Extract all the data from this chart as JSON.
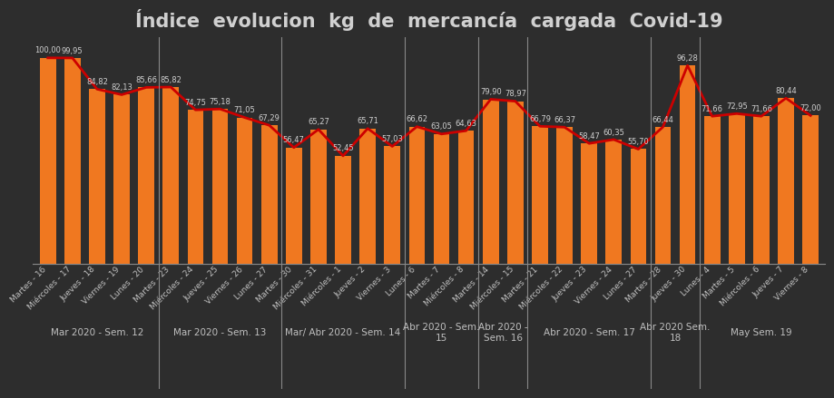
{
  "title": "Índice  evolucion  kg  de  mercancía  cargada  Covid-19",
  "background_color": "#2d2d2d",
  "bar_color": "#f07820",
  "line_color": "#cc0000",
  "grid_color": "#4a4a4a",
  "text_color": "#d0d0d0",
  "label_color": "#c0c0c0",
  "sep_color": "#888888",
  "categories": [
    "Martes - 16",
    "Miércoles - 17",
    "Jueves - 18",
    "Viernes - 19",
    "Lunes - 20",
    "Martes - 23",
    "Miércoles - 24",
    "Jueves - 25",
    "Viernes - 26",
    "Lunes - 27",
    "Martes - 30",
    "Miércoles - 31",
    "Miércoles - 1",
    "Jueves - 2",
    "Viernes - 3",
    "Lunes - 6",
    "Martes - 7",
    "Miércoles - 8",
    "Martes - 14",
    "Miércoles - 15",
    "Martes - 21",
    "Miércoles - 22",
    "Jueves - 23",
    "Viernes - 24",
    "Lunes - 27",
    "Martes - 28",
    "Jueves - 30",
    "Lunes - 4",
    "Martes - 5",
    "Miércoles - 6",
    "Jueves - 7",
    "Viernes - 8"
  ],
  "values": [
    100.0,
    99.95,
    84.82,
    82.13,
    85.66,
    85.82,
    74.75,
    75.18,
    71.05,
    67.29,
    56.47,
    65.27,
    52.45,
    65.71,
    57.03,
    66.62,
    63.05,
    64.63,
    79.9,
    78.97,
    66.79,
    66.37,
    58.47,
    60.35,
    55.7,
    66.44,
    96.28,
    71.66,
    72.95,
    71.66,
    80.44,
    72.0
  ],
  "week_groups": [
    {
      "label": "Mar 2020 - Sem. 12",
      "start": 0,
      "end": 4
    },
    {
      "label": "Mar 2020 - Sem. 13",
      "start": 5,
      "end": 9
    },
    {
      "label": "Mar/ Abr 2020 - Sem. 14",
      "start": 10,
      "end": 14
    },
    {
      "label": "Abr 2020 - Sem.\n15",
      "start": 15,
      "end": 17
    },
    {
      "label": "Abr 2020 -\nSem. 16",
      "start": 18,
      "end": 19
    },
    {
      "label": "Abr 2020 - Sem. 17",
      "start": 20,
      "end": 24
    },
    {
      "label": "Abr 2020 Sem.\n18",
      "start": 25,
      "end": 26
    },
    {
      "label": "May Sem. 19",
      "start": 27,
      "end": 31
    }
  ],
  "ylim": [
    0,
    110
  ],
  "title_fontsize": 15,
  "tick_fontsize": 6.5,
  "group_label_fontsize": 7.5,
  "value_fontsize": 6
}
